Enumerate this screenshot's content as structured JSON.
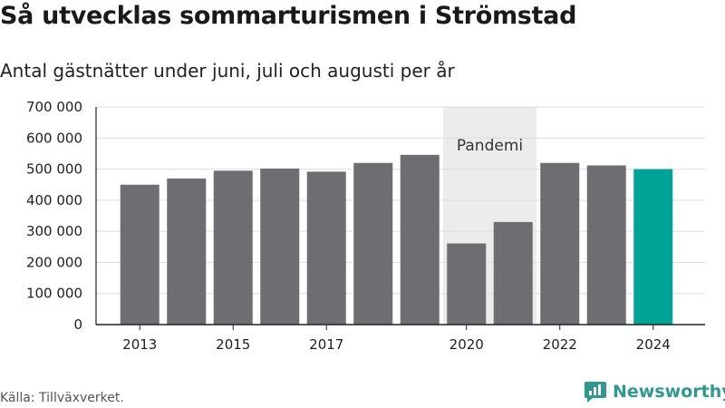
{
  "title": "Så utvecklas sommarturismen i Strömstad",
  "subtitle": "Antal gästnätter under juni, juli och augusti per år",
  "source": "Källa: Tillväxverket.",
  "brand": {
    "name": "Newsworthy",
    "icon": "newsworthy-logo-icon",
    "color": "#2e9a8e"
  },
  "chart_data": {
    "type": "bar",
    "categories": [
      "2013",
      "2014",
      "2015",
      "2016",
      "2017",
      "2018",
      "2019",
      "2020",
      "2021",
      "2022",
      "2023",
      "2024"
    ],
    "values": [
      450000,
      470000,
      495000,
      502000,
      492000,
      520000,
      546000,
      261000,
      330000,
      520000,
      512000,
      500000
    ],
    "x_tick_labels": [
      "2013",
      "",
      "2015",
      "",
      "2017",
      "",
      "",
      "2020",
      "",
      "2022",
      "",
      "2024"
    ],
    "y_ticks": [
      0,
      100000,
      200000,
      300000,
      400000,
      500000,
      600000,
      700000
    ],
    "y_tick_labels": [
      "0",
      "100 000",
      "200 000",
      "300 000",
      "400 000",
      "500 000",
      "600 000",
      "700 000"
    ],
    "ylim": [
      0,
      700000
    ],
    "xlabel": "",
    "ylabel": "",
    "grid": true,
    "colors": {
      "bar": "#6e6d72",
      "highlight": "#00a398",
      "shade": "#ececec",
      "grid": "#dddddd",
      "axis": "#222222"
    },
    "highlight_category": "2024",
    "annotation": {
      "label": "Pandemi",
      "from": "2020",
      "to": "2021"
    }
  }
}
